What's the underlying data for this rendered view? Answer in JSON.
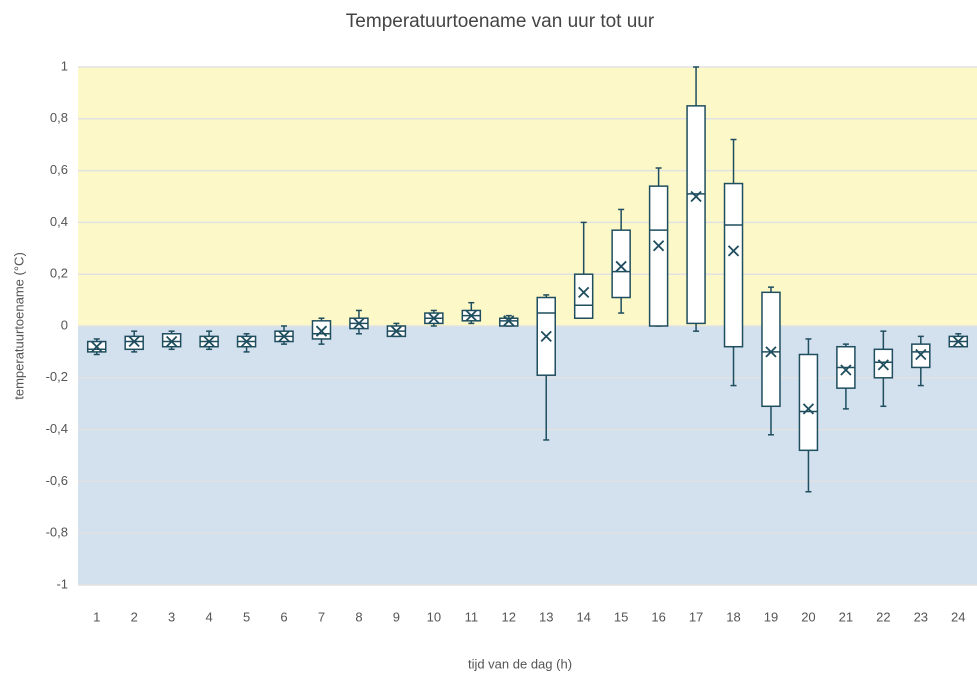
{
  "chart_data": {
    "type": "box",
    "title": "Temperatuurtoename van uur tot uur",
    "x_label": "tijd van de dag (h)",
    "y_label": "temperatuurtoename (°C)",
    "categories": [
      "1",
      "2",
      "3",
      "4",
      "5",
      "6",
      "7",
      "8",
      "9",
      "10",
      "11",
      "12",
      "13",
      "14",
      "15",
      "16",
      "17",
      "18",
      "19",
      "20",
      "21",
      "22",
      "23",
      "24"
    ],
    "min": [
      -0.11,
      -0.1,
      -0.09,
      -0.09,
      -0.1,
      -0.07,
      -0.07,
      -0.03,
      -0.04,
      0.0,
      0.01,
      0.0,
      -0.44,
      0.03,
      0.05,
      0.0,
      -0.02,
      -0.23,
      -0.42,
      -0.64,
      -0.32,
      -0.31,
      -0.23,
      -0.08
    ],
    "q1": [
      -0.1,
      -0.09,
      -0.08,
      -0.08,
      -0.08,
      -0.06,
      -0.05,
      -0.01,
      -0.04,
      0.01,
      0.02,
      0.0,
      -0.19,
      0.03,
      0.11,
      0.0,
      0.01,
      -0.08,
      -0.31,
      -0.48,
      -0.24,
      -0.2,
      -0.16,
      -0.08
    ],
    "median": [
      -0.09,
      -0.06,
      -0.06,
      -0.06,
      -0.06,
      -0.04,
      -0.03,
      0.01,
      -0.02,
      0.03,
      0.04,
      0.02,
      0.05,
      0.08,
      0.21,
      0.37,
      0.51,
      0.39,
      -0.1,
      -0.33,
      -0.16,
      -0.14,
      -0.1,
      -0.06
    ],
    "q3": [
      -0.06,
      -0.04,
      -0.03,
      -0.04,
      -0.04,
      -0.02,
      0.02,
      0.03,
      0.0,
      0.05,
      0.06,
      0.03,
      0.11,
      0.2,
      0.37,
      0.54,
      0.85,
      0.55,
      0.13,
      -0.11,
      -0.08,
      -0.09,
      -0.07,
      -0.04
    ],
    "max": [
      -0.05,
      -0.02,
      -0.02,
      -0.02,
      -0.03,
      0.0,
      0.03,
      0.06,
      0.01,
      0.06,
      0.09,
      0.04,
      0.12,
      0.4,
      0.45,
      0.61,
      1.0,
      0.72,
      0.15,
      -0.05,
      -0.07,
      -0.02,
      -0.04,
      -0.03
    ],
    "mean": [
      -0.08,
      -0.06,
      -0.06,
      -0.06,
      -0.06,
      -0.04,
      -0.02,
      0.01,
      -0.02,
      0.03,
      0.04,
      0.02,
      -0.04,
      0.13,
      0.23,
      0.31,
      0.5,
      0.29,
      -0.1,
      -0.32,
      -0.17,
      -0.15,
      -0.11,
      -0.06
    ],
    "color": "#1f4e5f",
    "positive_fill": "#fcf8c8",
    "negative_fill": "#d3e0ee",
    "grid": true,
    "ylim": [
      -1,
      1
    ],
    "yticks": [
      {
        "value": -1,
        "label": "-1"
      },
      {
        "value": -0.8,
        "label": "-0,8"
      },
      {
        "value": -0.6,
        "label": "-0,6"
      },
      {
        "value": -0.4,
        "label": "-0,4"
      },
      {
        "value": -0.2,
        "label": "-0,2"
      },
      {
        "value": 0,
        "label": "0"
      },
      {
        "value": 0.2,
        "label": "0,2"
      },
      {
        "value": 0.4,
        "label": "0,4"
      },
      {
        "value": 0.6,
        "label": "0,6"
      },
      {
        "value": 0.8,
        "label": "0,8"
      },
      {
        "value": 1,
        "label": "1"
      }
    ]
  }
}
